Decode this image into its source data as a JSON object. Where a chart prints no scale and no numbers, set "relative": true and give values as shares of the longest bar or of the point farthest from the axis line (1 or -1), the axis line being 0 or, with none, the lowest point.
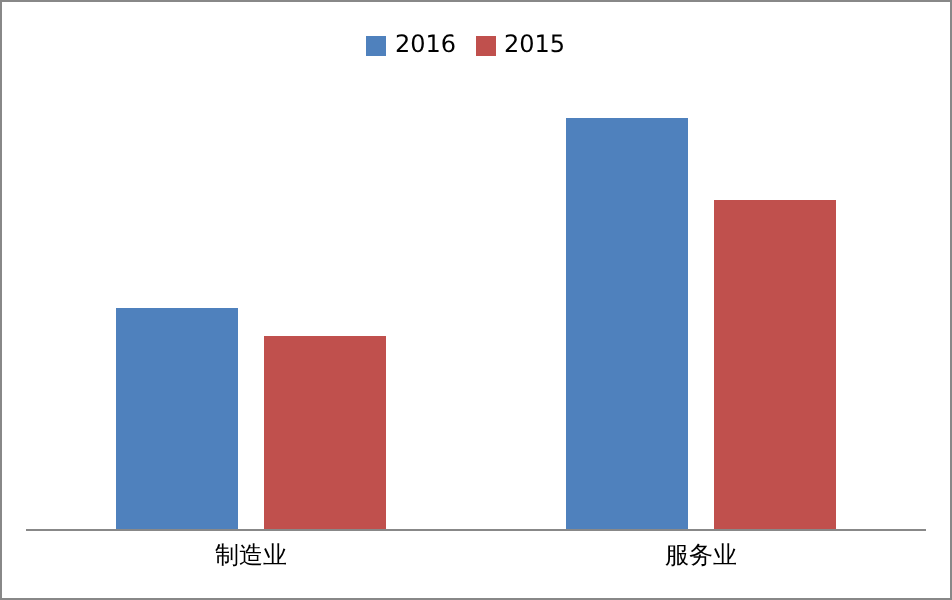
{
  "chart_data": {
    "type": "bar",
    "relative": true,
    "categories": [
      "制造业",
      "服务业"
    ],
    "series": [
      {
        "name": "2016",
        "color": "#4f81bd",
        "values": [
          0.539,
          1
        ]
      },
      {
        "name": "2015",
        "color": "#c0504d",
        "values": [
          0.471,
          0.801
        ]
      }
    ],
    "legend": "top",
    "grid": false
  }
}
